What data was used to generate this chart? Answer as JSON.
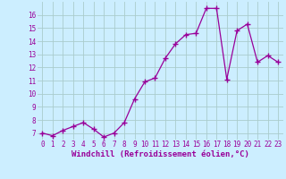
{
  "x": [
    0,
    1,
    2,
    3,
    4,
    5,
    6,
    7,
    8,
    9,
    10,
    11,
    12,
    13,
    14,
    15,
    16,
    17,
    18,
    19,
    20,
    21,
    22,
    23
  ],
  "y": [
    7.0,
    6.8,
    7.2,
    7.5,
    7.8,
    7.3,
    6.7,
    7.0,
    7.8,
    9.6,
    10.9,
    11.2,
    12.7,
    13.8,
    14.5,
    14.6,
    16.5,
    16.5,
    11.1,
    14.8,
    15.3,
    12.4,
    12.9,
    12.4
  ],
  "line_color": "#990099",
  "marker": "+",
  "marker_size": 4,
  "background_color": "#cceeff",
  "grid_color": "#aacccc",
  "xlabel": "Windchill (Refroidissement éolien,°C)",
  "ylabel_ticks": [
    7,
    8,
    9,
    10,
    11,
    12,
    13,
    14,
    15,
    16
  ],
  "xticks": [
    0,
    1,
    2,
    3,
    4,
    5,
    6,
    7,
    8,
    9,
    10,
    11,
    12,
    13,
    14,
    15,
    16,
    17,
    18,
    19,
    20,
    21,
    22,
    23
  ],
  "ylim": [
    6.5,
    17.0
  ],
  "xlim": [
    -0.5,
    23.5
  ],
  "tick_fontsize": 5.5,
  "xlabel_fontsize": 6.5,
  "line_width": 0.9,
  "marker_edge_width": 1.0
}
